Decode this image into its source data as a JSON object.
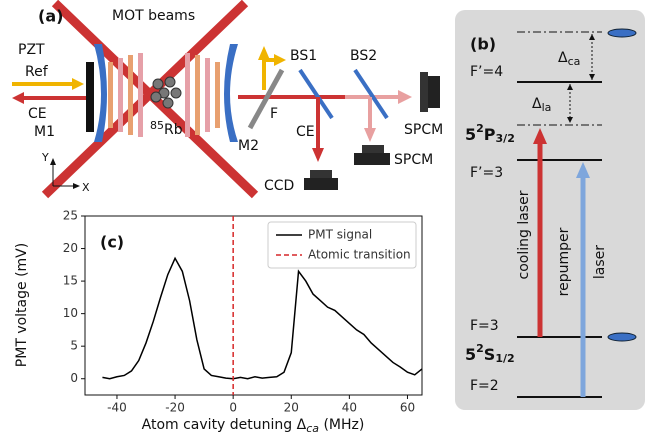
{
  "diagram_a": {
    "label": "(a)",
    "beams": "MOT beams",
    "pzt": "PZT",
    "ref": "Ref",
    "ce_left": "CE",
    "m1": "M1",
    "m2": "M2",
    "rb": [
      "85",
      "Rb"
    ],
    "f": "F",
    "bs1": "BS1",
    "bs2": "BS2",
    "ce_down": "CE",
    "ccd": "CCD",
    "spcm_right": "SPCM",
    "spcm_bottom": "SPCM",
    "axis_y": "Y",
    "axis_x": "X"
  },
  "diagram_b": {
    "label": "(b)",
    "f4": "F’=4",
    "f3": "F’=3",
    "fg3": "F=3",
    "fg2": "F=2",
    "level_p": [
      "5",
      "2",
      "P",
      "3/2"
    ],
    "level_s": [
      "5",
      "2",
      "S",
      "1/2"
    ],
    "delta_ca": [
      "Δ",
      "ca"
    ],
    "delta_la": [
      "Δ",
      "la"
    ],
    "cooling": "cooling laser",
    "repumper": "repumper",
    "laser": "laser"
  },
  "chart_data": {
    "type": "line",
    "label": "(c)",
    "xlabel": [
      "Atom cavity detuning Δ",
      "ca",
      " (MHz)"
    ],
    "ylabel": "PMT voltage (mV)",
    "xlim": [
      -51,
      65
    ],
    "ylim": [
      -2.5,
      25
    ],
    "xticks": [
      -40,
      -20,
      0,
      20,
      40,
      60
    ],
    "yticks": [
      0,
      5,
      10,
      15,
      20,
      25
    ],
    "legend": "upper right",
    "series": [
      {
        "name": "PMT signal",
        "color": "#000000",
        "x": [
          -45,
          -42.5,
          -40,
          -37.5,
          -35,
          -32.5,
          -30,
          -27.5,
          -25,
          -22.5,
          -20,
          -17.5,
          -15,
          -12.5,
          -10,
          -7.5,
          -5,
          -2.5,
          0,
          2.5,
          5,
          7.5,
          10,
          12.5,
          15,
          17.5,
          20,
          22.5,
          25,
          27.5,
          30,
          32.5,
          35,
          37.5,
          40,
          42.5,
          45,
          47.5,
          50,
          52.5,
          55,
          57.5,
          60,
          62.5,
          65
        ],
        "values": [
          0.2,
          0,
          0.3,
          0.5,
          1.2,
          2.8,
          5.5,
          8.8,
          12.5,
          16,
          18.5,
          16.5,
          12,
          6,
          1.5,
          0.5,
          0.3,
          0.1,
          0,
          0.2,
          0,
          0.3,
          0.1,
          0.2,
          0.3,
          1,
          4,
          16.5,
          15,
          13,
          12,
          11,
          10.5,
          9.5,
          8.5,
          7.5,
          6.8,
          5.5,
          4.5,
          3.5,
          2.5,
          1.8,
          1,
          0.6,
          1.5
        ]
      }
    ],
    "vlines": [
      {
        "name": "Atomic transition",
        "color": "#d62728",
        "x": 0
      }
    ]
  }
}
